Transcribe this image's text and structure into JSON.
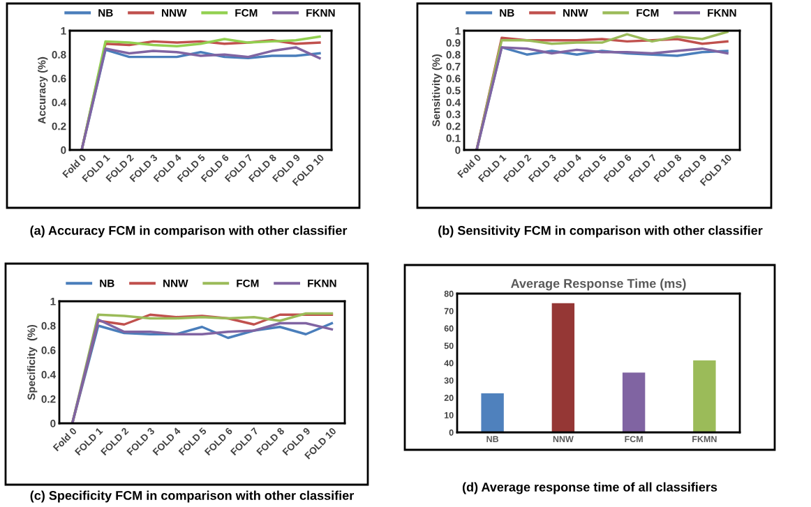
{
  "chart_data": [
    {
      "type": "line",
      "ylabel": "Accuracy (%)",
      "categories": [
        "Fold 0",
        "FOLD 1",
        "FOLD 2",
        "FOLD 3",
        "FOLD 4",
        "FOLD 5",
        "FOLD 6",
        "FOLD 7",
        "FOLD 8",
        "FOLD 9",
        "FOLD 10"
      ],
      "ylim": [
        0,
        1
      ],
      "yticks": [
        0,
        0.2,
        0.4,
        0.6,
        0.8,
        1
      ],
      "legend": "top",
      "grid": false,
      "marker": "none",
      "line_style": "solid",
      "series": [
        {
          "name": "NB",
          "color": "#4a7ebb",
          "values": [
            0,
            0.84,
            0.78,
            0.78,
            0.78,
            0.82,
            0.78,
            0.77,
            0.79,
            0.79,
            0.81
          ]
        },
        {
          "name": "NNW",
          "color": "#c0504d",
          "values": [
            0,
            0.89,
            0.88,
            0.91,
            0.9,
            0.91,
            0.89,
            0.9,
            0.92,
            0.89,
            0.9
          ]
        },
        {
          "name": "FCM",
          "color": "#92d050",
          "values": [
            0,
            0.91,
            0.9,
            0.88,
            0.87,
            0.89,
            0.93,
            0.9,
            0.91,
            0.92,
            0.95
          ]
        },
        {
          "name": "FKNN",
          "color": "#8064a2",
          "values": [
            0,
            0.85,
            0.81,
            0.83,
            0.82,
            0.79,
            0.8,
            0.78,
            0.83,
            0.86,
            0.77
          ]
        }
      ],
      "annotations": [
        "(a) Accuracy FCM in comparison with other classifier"
      ]
    },
    {
      "type": "line",
      "ylabel": "Sensitivity (%)",
      "categories": [
        "Fold 0",
        "FOLD 1",
        "FOLD 2",
        "FOLD 3",
        "FOLD 4",
        "FOLD 5",
        "FOLD 6",
        "FOLD 7",
        "FOLD 8",
        "FOLD 9",
        "FOLD 10"
      ],
      "ylim": [
        0,
        1
      ],
      "yticks": [
        0,
        0.1,
        0.2,
        0.3,
        0.4,
        0.5,
        0.6,
        0.7,
        0.8,
        0.9,
        1
      ],
      "legend": "top",
      "grid": false,
      "marker": "none",
      "line_style": "solid",
      "series": [
        {
          "name": "NB",
          "color": "#4a7ebb",
          "values": [
            0,
            0.86,
            0.8,
            0.83,
            0.8,
            0.83,
            0.81,
            0.8,
            0.79,
            0.82,
            0.83
          ]
        },
        {
          "name": "NNW",
          "color": "#c0504d",
          "values": [
            0,
            0.94,
            0.92,
            0.92,
            0.92,
            0.93,
            0.91,
            0.92,
            0.93,
            0.89,
            0.91
          ]
        },
        {
          "name": "FCM",
          "color": "#9bbb59",
          "values": [
            0,
            0.92,
            0.92,
            0.89,
            0.9,
            0.9,
            0.97,
            0.91,
            0.95,
            0.93,
            0.99
          ]
        },
        {
          "name": "FKNN",
          "color": "#8064a2",
          "values": [
            0,
            0.86,
            0.85,
            0.81,
            0.84,
            0.82,
            0.82,
            0.81,
            0.83,
            0.85,
            0.81
          ]
        }
      ],
      "annotations": [
        "(b) Sensitivity FCM in comparison with other classifier"
      ]
    },
    {
      "type": "line",
      "ylabel": "Specificity  (%)",
      "categories": [
        "Fold 0",
        "FOLD 1",
        "FOLD 2",
        "FOLD 3",
        "FOLD 4",
        "FOLD 5",
        "FOLD 6",
        "FOLD 7",
        "FOLD 8",
        "FOLD 9",
        "FOLD 10"
      ],
      "ylim": [
        0,
        1
      ],
      "yticks": [
        0,
        0.2,
        0.4,
        0.6,
        0.8,
        1
      ],
      "legend": "top",
      "grid": false,
      "marker": "none",
      "line_style": "solid",
      "series": [
        {
          "name": "NB",
          "color": "#4a7ebb",
          "values": [
            0,
            0.8,
            0.74,
            0.73,
            0.73,
            0.79,
            0.7,
            0.76,
            0.79,
            0.73,
            0.82
          ]
        },
        {
          "name": "NNW",
          "color": "#c0504d",
          "values": [
            0,
            0.84,
            0.81,
            0.89,
            0.87,
            0.88,
            0.86,
            0.81,
            0.89,
            0.89,
            0.89
          ]
        },
        {
          "name": "FCM",
          "color": "#9bbb59",
          "values": [
            0,
            0.89,
            0.88,
            0.86,
            0.86,
            0.87,
            0.86,
            0.87,
            0.84,
            0.9,
            0.9
          ]
        },
        {
          "name": "FKNN",
          "color": "#8064a2",
          "values": [
            0,
            0.85,
            0.75,
            0.75,
            0.73,
            0.73,
            0.75,
            0.76,
            0.82,
            0.82,
            0.77
          ]
        }
      ],
      "annotations": [
        "(c) Specificity FCM in comparison with other classifier"
      ]
    },
    {
      "type": "bar",
      "title": "Average Response Time (ms)",
      "categories": [
        "NB",
        "NNW",
        "FCM",
        "FKMN"
      ],
      "values": [
        22.5,
        74.5,
        34.5,
        41.5
      ],
      "colors": [
        "#4f81bd",
        "#953735",
        "#8064a2",
        "#9bbb59"
      ],
      "ylim": [
        0,
        80
      ],
      "yticks": [
        0,
        10,
        20,
        30,
        40,
        50,
        60,
        70,
        80
      ],
      "grid": false,
      "annotations": [
        "(d) Average response time of all classifiers"
      ]
    }
  ]
}
